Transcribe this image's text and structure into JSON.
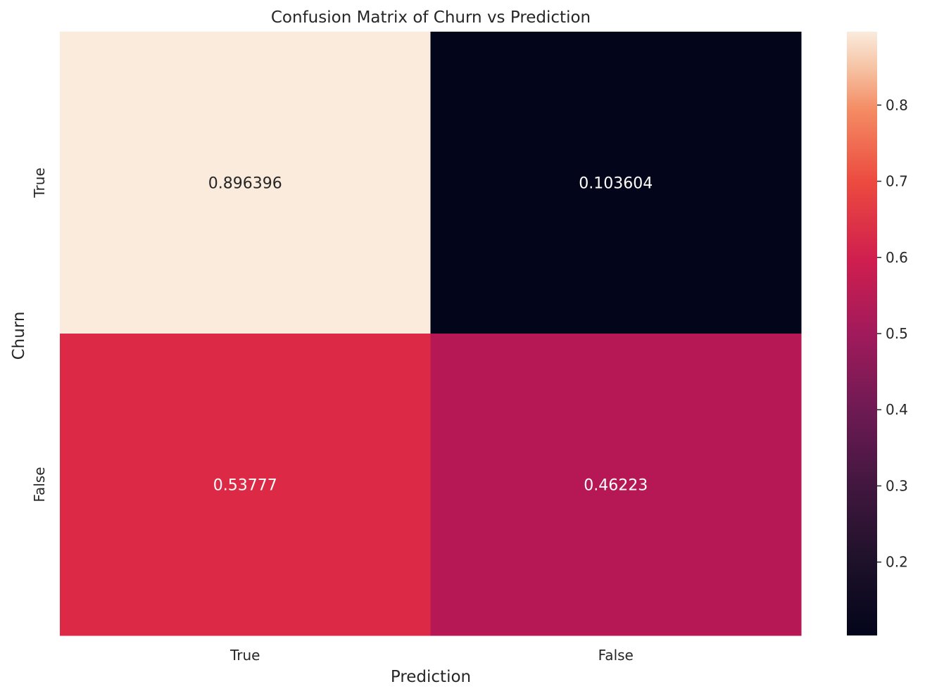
{
  "chart_data": {
    "type": "heatmap",
    "title": "Confusion Matrix of Churn vs Prediction",
    "xlabel": "Prediction",
    "ylabel": "Churn",
    "x_categories": [
      "True",
      "False"
    ],
    "y_categories": [
      "True",
      "False"
    ],
    "values": [
      [
        0.896396,
        0.103604
      ],
      [
        0.53777,
        0.46223
      ]
    ],
    "value_labels": [
      [
        "0.896396",
        "0.103604"
      ],
      [
        "0.53777",
        "0.46223"
      ]
    ],
    "colorbar": {
      "range": [
        0.103604,
        0.896396
      ],
      "ticks": [
        0.2,
        0.3,
        0.4,
        0.5,
        0.6,
        0.7,
        0.8
      ],
      "tick_labels": [
        "0.2",
        "0.3",
        "0.4",
        "0.5",
        "0.6",
        "0.7",
        "0.8"
      ]
    },
    "colormap": "rocket",
    "colors": {
      "cell_0_0": "#faebdd",
      "cell_0_1": "#03051a",
      "cell_1_0": "#dc2a46",
      "cell_1_1": "#b61855"
    },
    "grid": false
  }
}
